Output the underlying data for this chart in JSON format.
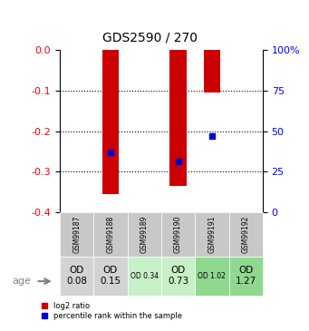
{
  "title": "GDS2590 / 270",
  "samples": [
    "GSM99187",
    "GSM99188",
    "GSM99189",
    "GSM99190",
    "GSM99191",
    "GSM99192"
  ],
  "log2_ratios": [
    0.0,
    -0.355,
    0.0,
    -0.335,
    -0.105,
    0.0
  ],
  "percentile_ranks": [
    null,
    0.37,
    null,
    0.315,
    0.47,
    null
  ],
  "ylim_left": [
    -0.4,
    0.0
  ],
  "ylim_right": [
    0,
    100
  ],
  "yticks_left": [
    0.0,
    -0.1,
    -0.2,
    -0.3,
    -0.4
  ],
  "yticks_right": [
    100,
    75,
    50,
    25,
    0
  ],
  "bar_color": "#cc0000",
  "percentile_color": "#0000cc",
  "bar_width": 0.5,
  "cell_labels": [
    "OD\n0.08",
    "OD\n0.15",
    "OD 0.34",
    "OD\n0.73",
    "OD 1.02",
    "OD\n1.27"
  ],
  "cell_colors": [
    "#d3d3d3",
    "#d3d3d3",
    "#c8f0c8",
    "#c8f0c8",
    "#90d890",
    "#90d890"
  ],
  "cell_fontsize_small": [
    false,
    false,
    true,
    false,
    true,
    false
  ],
  "sample_bg_color": "#c8c8c8",
  "xlabel": "",
  "legend_log2": "log2 ratio",
  "legend_pct": "percentile rank within the sample",
  "age_label": "age"
}
